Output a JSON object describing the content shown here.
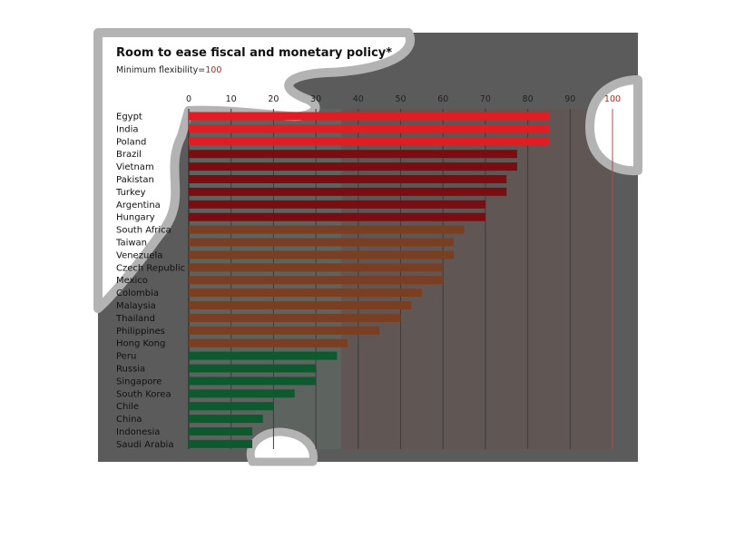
{
  "title": "Room to ease fiscal and monetary policy*",
  "subtitle": {
    "text": "Minimum flexibility=",
    "value": "100"
  },
  "colors": {
    "panel": "#5b5b5b",
    "grid": "#3c3c3c",
    "red": "#e31b23",
    "dark_red": "#7a0d12",
    "brown": "#7a3e22",
    "green": "#0e5a2f",
    "accent": "#e3120b"
  },
  "chart_data": {
    "type": "bar",
    "orientation": "horizontal",
    "title": "Room to ease fiscal and monetary policy*",
    "subtitle": "Minimum flexibility=100",
    "xlim": [
      0,
      100
    ],
    "xticks": [
      "0",
      "10",
      "20",
      "30",
      "40",
      "50",
      "60",
      "70",
      "80",
      "90",
      "100"
    ],
    "grid": true,
    "categories": [
      "Egypt",
      "India",
      "Poland",
      "Brazil",
      "Vietnam",
      "Pakistan",
      "Turkey",
      "Argentina",
      "Hungary",
      "South Africa",
      "Taiwan",
      "Venezuela",
      "Czech Republic",
      "Mexico",
      "Colombia",
      "Malaysia",
      "Thailand",
      "Philippines",
      "Hong Kong",
      "Peru",
      "Russia",
      "Singapore",
      "South Korea",
      "Chile",
      "China",
      "Indonesia",
      "Saudi Arabia"
    ],
    "values": [
      85,
      85,
      85,
      77.5,
      77.5,
      75,
      75,
      70,
      70,
      65,
      62.5,
      62.5,
      60,
      60,
      55,
      52.5,
      50,
      45,
      37.5,
      35,
      30,
      30,
      25,
      20,
      17.5,
      15,
      15
    ],
    "color_groups": [
      "red",
      "red",
      "red",
      "dark_red",
      "dark_red",
      "dark_red",
      "dark_red",
      "dark_red",
      "dark_red",
      "brown",
      "brown",
      "brown",
      "brown",
      "brown",
      "brown",
      "brown",
      "brown",
      "brown",
      "brown",
      "green",
      "green",
      "green",
      "green",
      "green",
      "green",
      "green",
      "green"
    ]
  }
}
